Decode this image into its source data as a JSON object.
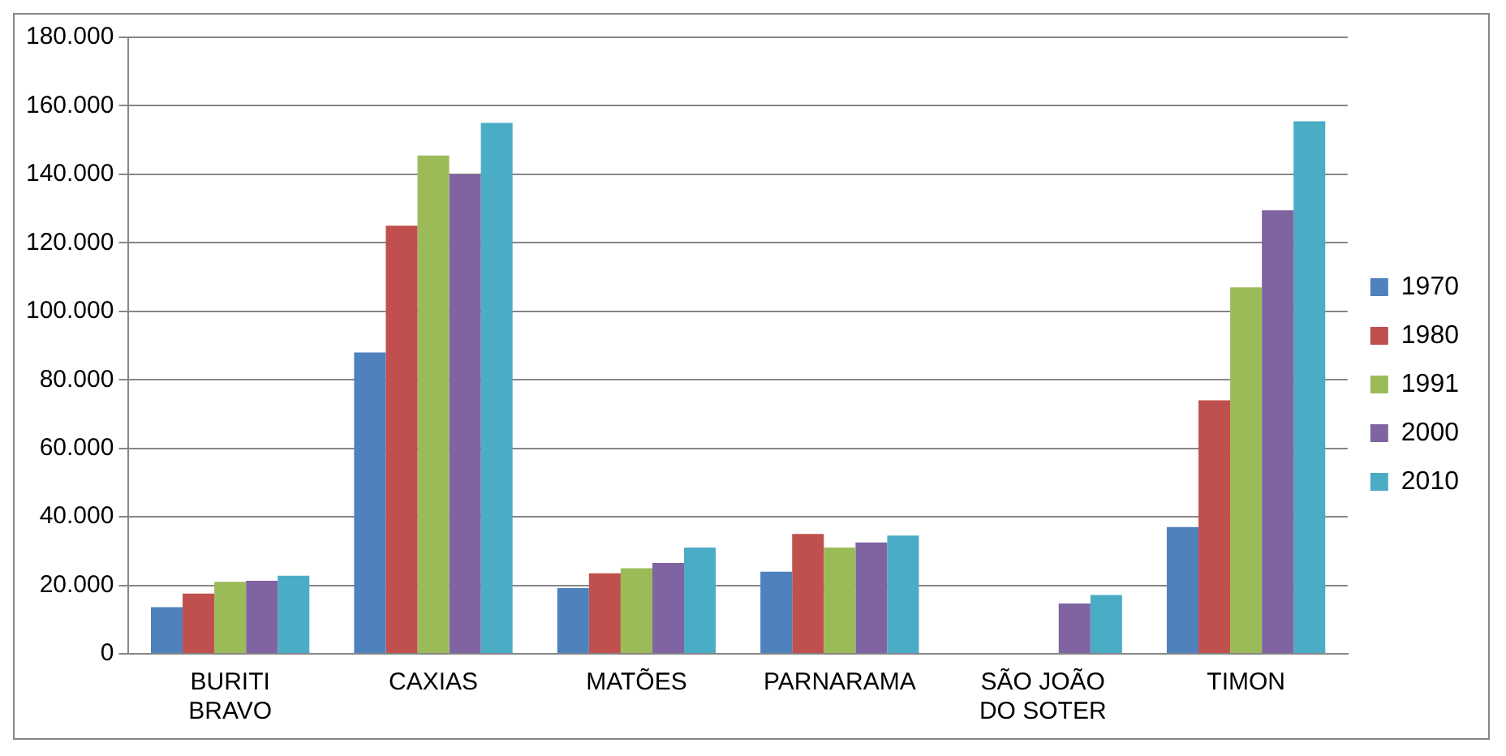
{
  "chart_data": {
    "type": "bar",
    "categories": [
      "BURITI BRAVO",
      "CAXIAS",
      "MATÕES",
      "PARNARAMA",
      "SÃO JOÃO DO SOTER",
      "TIMON"
    ],
    "series": [
      {
        "name": "1970",
        "color": "#4f81bd",
        "values": [
          13600,
          88000,
          19200,
          24000,
          null,
          37000
        ]
      },
      {
        "name": "1980",
        "color": "#c0504d",
        "values": [
          17600,
          125000,
          23500,
          35000,
          null,
          74000
        ]
      },
      {
        "name": "1991",
        "color": "#9bbb59",
        "values": [
          21000,
          145500,
          25000,
          31000,
          null,
          107000
        ]
      },
      {
        "name": "2000",
        "color": "#8064a2",
        "values": [
          21300,
          140000,
          26500,
          32500,
          14700,
          129500
        ]
      },
      {
        "name": "2010",
        "color": "#4bacc6",
        "values": [
          22800,
          155000,
          31000,
          34500,
          17200,
          155500
        ]
      }
    ],
    "ylim": [
      0,
      180000
    ],
    "yticks": [
      {
        "value": 0,
        "label": "0"
      },
      {
        "value": 20000,
        "label": "20.000"
      },
      {
        "value": 40000,
        "label": "40.000"
      },
      {
        "value": 60000,
        "label": "60.000"
      },
      {
        "value": 80000,
        "label": "80.000"
      },
      {
        "value": 100000,
        "label": "100.000"
      },
      {
        "value": 120000,
        "label": "120.000"
      },
      {
        "value": 140000,
        "label": "140.000"
      },
      {
        "value": 160000,
        "label": "160.000"
      },
      {
        "value": 180000,
        "label": "180.000"
      }
    ],
    "grid": "y",
    "legend": "right"
  }
}
